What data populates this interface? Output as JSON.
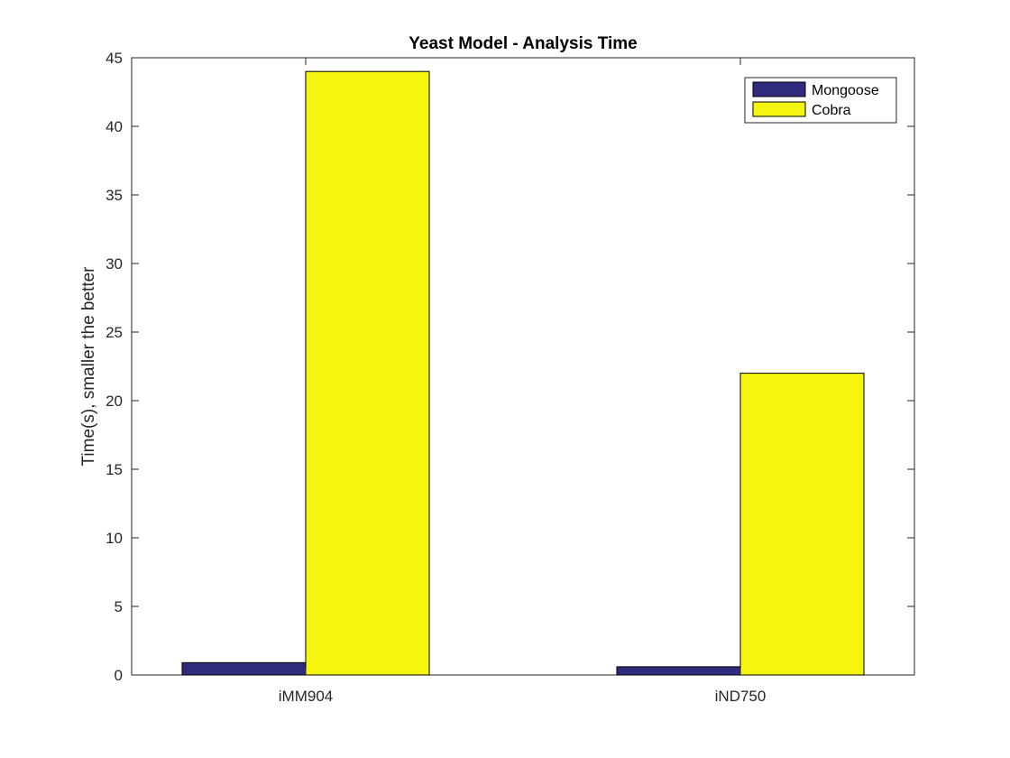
{
  "chart_data": {
    "type": "bar",
    "title": "Yeast Model - Analysis Time",
    "xlabel": "",
    "ylabel": "Time(s), smaller the better",
    "categories": [
      "iMM904",
      "iND750"
    ],
    "series": [
      {
        "name": "Mongoose",
        "values": [
          0.9,
          0.6
        ],
        "color": "#2f2a7e"
      },
      {
        "name": "Cobra",
        "values": [
          44,
          22
        ],
        "color": "#f5f50f"
      }
    ],
    "ylim": [
      0,
      45
    ],
    "yticks": [
      "0",
      "5",
      "10",
      "15",
      "20",
      "25",
      "30",
      "35",
      "40",
      "45"
    ],
    "grid": false,
    "legend_position": "top-right"
  }
}
